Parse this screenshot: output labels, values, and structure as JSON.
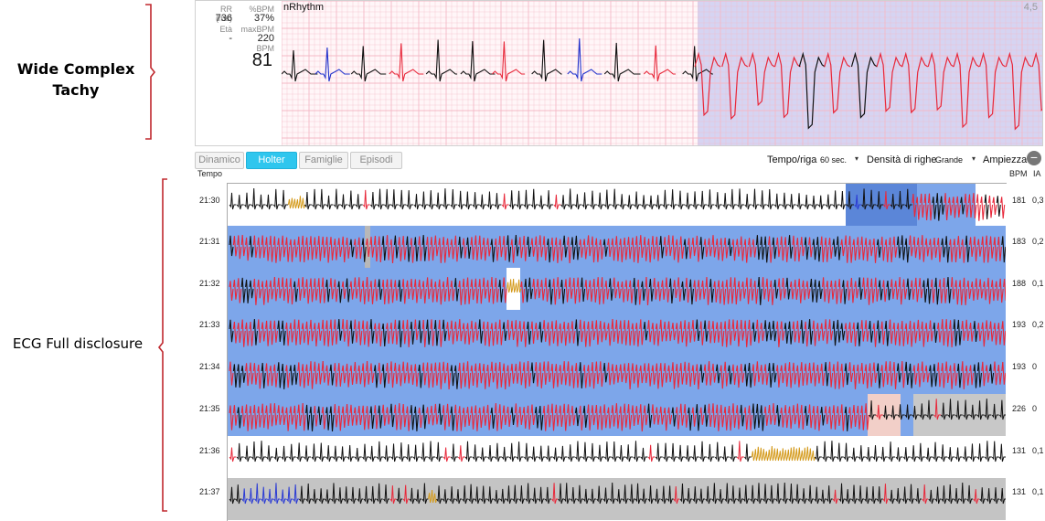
{
  "annotations": {
    "top_label": "Wide Complex\nTachy",
    "bottom_label": "ECG Full disclosure"
  },
  "top_panel": {
    "stats": [
      {
        "label": "RR (ms)",
        "value": "736"
      },
      {
        "label": "%BPM",
        "value": "37%"
      },
      {
        "label": "Età",
        "value": "-"
      },
      {
        "label": "maxBPM",
        "value": "220"
      },
      {
        "label": "BPM",
        "value": "81"
      }
    ],
    "strip_label": "nRhythm",
    "gain": "4,5"
  },
  "toolbar": {
    "tabs": [
      {
        "label": "Dinamico",
        "active": false
      },
      {
        "label": "Holter",
        "active": true
      },
      {
        "label": "Famiglie",
        "active": false
      },
      {
        "label": "Episodi",
        "active": false
      }
    ],
    "tempo_label": "Tempo/riga",
    "tempo_value": "60 sec.",
    "density_label": "Densità di righe",
    "density_value": "Grande",
    "amplitude_label": "Ampiezza",
    "minus_icon": "minus-icon"
  },
  "table": {
    "time_header": "Tempo",
    "bpm_header": "BPM",
    "ia_header": "IA",
    "rows": [
      {
        "time": "21:30",
        "bpm": "181",
        "ia": "0,3"
      },
      {
        "time": "21:31",
        "bpm": "183",
        "ia": "0,2"
      },
      {
        "time": "21:32",
        "bpm": "188",
        "ia": "0,1"
      },
      {
        "time": "21:33",
        "bpm": "193",
        "ia": "0,2"
      },
      {
        "time": "21:34",
        "bpm": "193",
        "ia": "0"
      },
      {
        "time": "21:35",
        "bpm": "226",
        "ia": "0"
      },
      {
        "time": "21:36",
        "bpm": "131",
        "ia": "0,1"
      },
      {
        "time": "21:37",
        "bpm": "131",
        "ia": "0,1"
      }
    ]
  },
  "colors": {
    "accent": "#2fc6ee",
    "episode_blue": "#7da6ea",
    "wide_red": "#e8283a",
    "normal_black": "#111111",
    "artifact_gold": "#d49a1b",
    "grid_pink": "#f4b9c6",
    "gray_band": "#c4c4c4"
  }
}
